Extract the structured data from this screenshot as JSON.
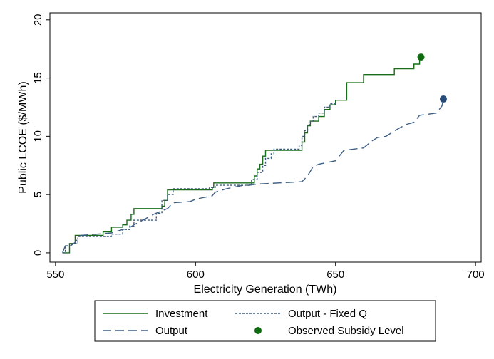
{
  "chart_data": {
    "type": "line",
    "xlabel": "Electricity Generation (TWh)",
    "ylabel": "Public LCOE ($/MWh)",
    "xlim": [
      548,
      702
    ],
    "ylim": [
      -0.8,
      20.6
    ],
    "xticks": [
      550,
      600,
      650,
      700
    ],
    "yticks": [
      0,
      5,
      10,
      15,
      20
    ],
    "grid": false,
    "legend_position": "bottom",
    "colors": {
      "investment": "#1a6b1a",
      "output_fixed_q": "#3a5a7a",
      "output": "#3e5f85",
      "observed_investment": "#0f6b0f",
      "observed_output": "#284d78"
    },
    "series": [
      {
        "name": "Investment",
        "style": "solid",
        "color_key": "investment",
        "step": true,
        "x": [
          552.5,
          555,
          557,
          567,
          570,
          574,
          575.5,
          577,
          578,
          588,
          589,
          590,
          606,
          606.5,
          621,
          622,
          623,
          624,
          625,
          638,
          639,
          640,
          641,
          644,
          646,
          648,
          650,
          654,
          660,
          671,
          678,
          680,
          681
        ],
        "y": [
          0,
          0.8,
          1.5,
          1.8,
          2.2,
          2.4,
          2.8,
          3.3,
          3.8,
          4.0,
          4.5,
          5.4,
          5.6,
          6.0,
          6.6,
          7.2,
          7.6,
          8.3,
          8.8,
          9.5,
          10.3,
          10.9,
          11.3,
          11.7,
          12.3,
          12.7,
          13.1,
          14.6,
          15.3,
          15.8,
          16.2,
          16.6,
          16.8
        ]
      },
      {
        "name": "Output - Fixed Q",
        "style": "dotted",
        "color_key": "output_fixed_q",
        "step": true,
        "x": [
          552.5,
          553.5,
          556,
          558,
          570,
          574,
          576.5,
          578,
          586,
          588,
          590,
          592,
          605,
          607,
          620,
          622,
          624,
          625,
          627,
          628,
          629,
          637,
          638,
          639,
          640,
          641,
          642,
          644,
          646,
          648,
          650
        ],
        "y": [
          0,
          0.6,
          0.8,
          1.4,
          1.6,
          2.0,
          2.3,
          2.8,
          3.4,
          4.5,
          5.0,
          5.5,
          5.6,
          5.8,
          6.3,
          6.9,
          7.5,
          8.1,
          8.5,
          8.9,
          8.9,
          9.2,
          10.0,
          10.5,
          11.0,
          11.3,
          11.7,
          12.0,
          12.5,
          12.8,
          12.9
        ]
      },
      {
        "name": "Output",
        "style": "dashed",
        "color_key": "output",
        "step": false,
        "x": [
          552.5,
          553.5,
          556,
          557,
          559,
          570,
          574,
          576,
          578,
          585,
          588,
          590,
          592,
          598,
          600,
          602,
          606,
          607,
          611,
          613,
          617,
          619,
          622,
          638,
          640,
          642,
          644,
          650,
          653,
          660,
          663,
          665,
          668,
          672,
          675,
          678,
          680,
          686,
          688,
          688.5
        ],
        "y": [
          0,
          0.6,
          0.7,
          0.9,
          1.5,
          1.7,
          2.0,
          2.1,
          2.4,
          3.3,
          3.6,
          3.8,
          4.3,
          4.4,
          4.6,
          4.7,
          4.9,
          5.2,
          5.5,
          5.6,
          5.8,
          5.8,
          5.9,
          6.1,
          6.6,
          7.4,
          7.6,
          7.9,
          8.8,
          9.0,
          9.6,
          9.9,
          10.0,
          10.6,
          11.0,
          11.2,
          11.8,
          12.0,
          12.6,
          13.1
        ]
      }
    ],
    "observed": [
      {
        "series": "Investment",
        "x": 680.5,
        "y": 16.8,
        "color_key": "observed_investment"
      },
      {
        "series": "Output",
        "x": 688.5,
        "y": 13.2,
        "color_key": "observed_output"
      }
    ],
    "legend": [
      {
        "label": "Investment",
        "style": "solid",
        "color_key": "investment"
      },
      {
        "label": "Output - Fixed Q",
        "style": "dotted",
        "color_key": "output_fixed_q"
      },
      {
        "label": "Output",
        "style": "dashed",
        "color_key": "output"
      },
      {
        "label": "Observed Subsidy Level",
        "style": "dot",
        "color_key": "observed_investment"
      }
    ]
  }
}
